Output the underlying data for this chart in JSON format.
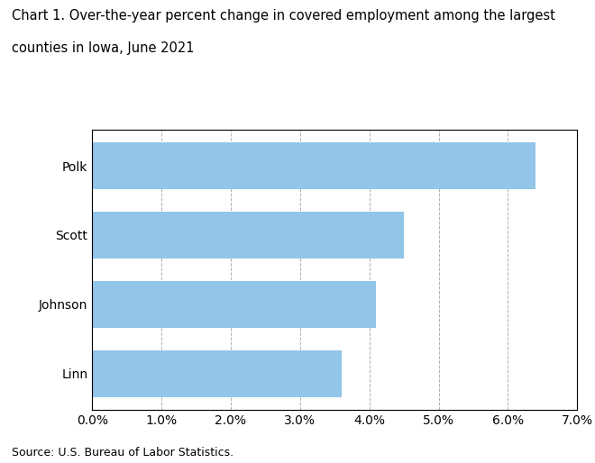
{
  "title_line1": "Chart 1. Over-the-year percent change in covered employment among the largest",
  "title_line2": "counties in Iowa, June 2021",
  "categories": [
    "Linn",
    "Johnson",
    "Scott",
    "Polk"
  ],
  "values": [
    0.036,
    0.041,
    0.045,
    0.064
  ],
  "bar_color": "#92c5e8",
  "xlim": [
    0,
    0.07
  ],
  "xticks": [
    0.0,
    0.01,
    0.02,
    0.03,
    0.04,
    0.05,
    0.06,
    0.07
  ],
  "xtick_labels": [
    "0.0%",
    "1.0%",
    "2.0%",
    "3.0%",
    "4.0%",
    "5.0%",
    "6.0%",
    "7.0%"
  ],
  "source_text": "Source: U.S. Bureau of Labor Statistics.",
  "title_fontsize": 10.5,
  "tick_fontsize": 10,
  "source_fontsize": 9,
  "background_color": "#ffffff",
  "grid_color": "#b0b0b0",
  "bar_height": 0.68
}
